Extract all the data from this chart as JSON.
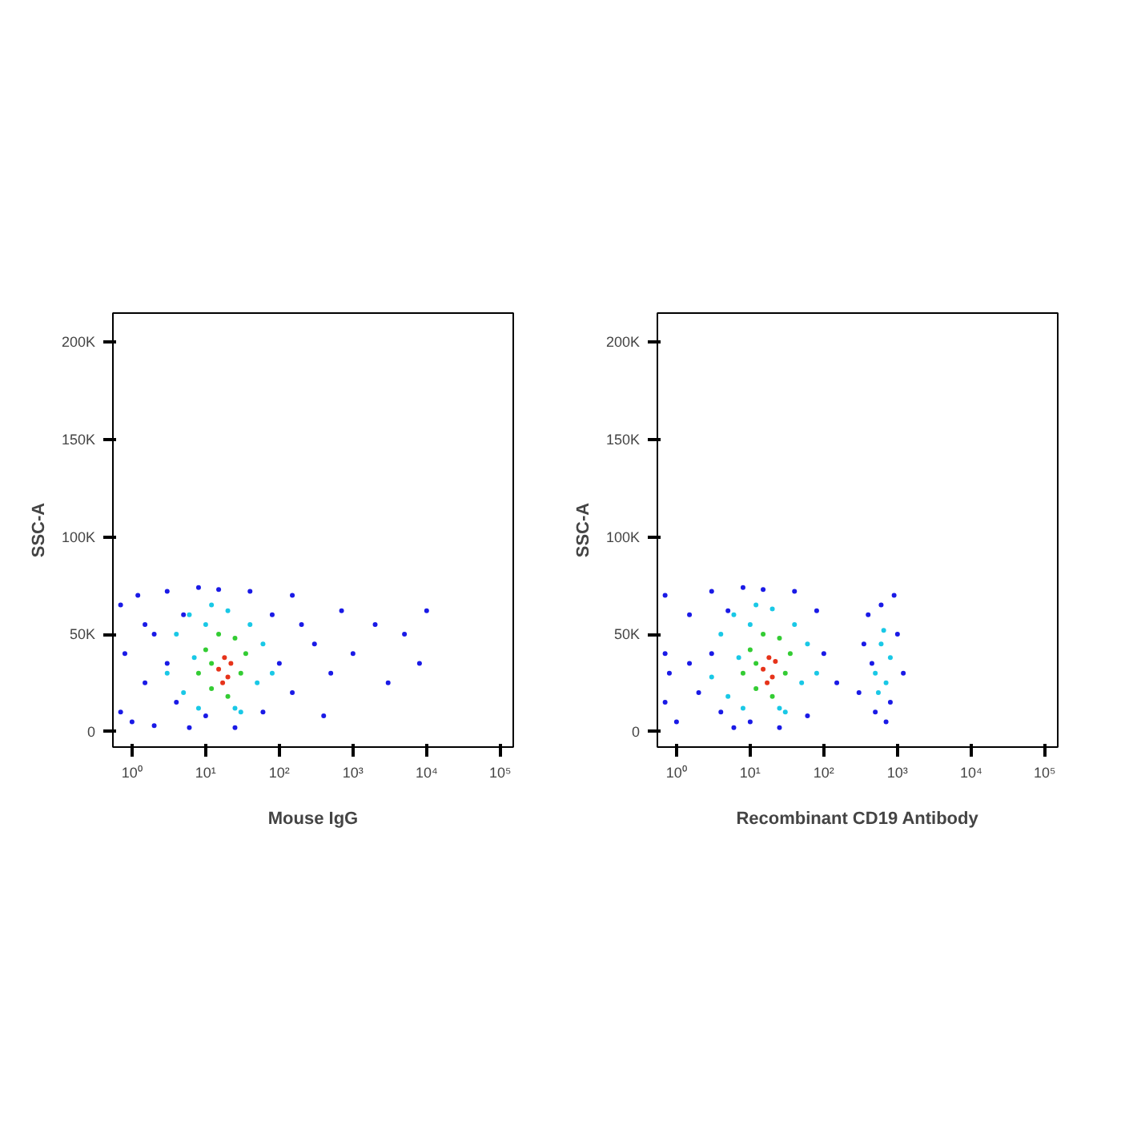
{
  "chart_data": [
    {
      "type": "scatter",
      "xlabel": "Mouse IgG",
      "ylabel": "SSC-A",
      "log": "x",
      "marker": "circle",
      "grid": false,
      "xlim": [
        0.55,
        150000
      ],
      "ylim": [
        -8000,
        215000
      ],
      "xticks": [
        {
          "value": 1,
          "label": "10⁰"
        },
        {
          "value": 10,
          "label": "10¹"
        },
        {
          "value": 100,
          "label": "10²"
        },
        {
          "value": 1000,
          "label": "10³"
        },
        {
          "value": 10000,
          "label": "10⁴"
        },
        {
          "value": 100000,
          "label": "10⁵"
        }
      ],
      "yticks": [
        0,
        {
          "value": 50000,
          "label": "50K"
        },
        {
          "value": 100000,
          "label": "100K"
        },
        {
          "value": 150000,
          "label": "150K"
        },
        {
          "value": 200000,
          "label": "200K"
        }
      ],
      "series": [
        {
          "color": "#1a1ae6",
          "x": [
            0.7,
            0.8,
            0.7,
            1,
            1.2,
            1.5,
            2,
            2,
            3,
            4,
            5,
            6,
            8,
            10,
            15,
            25,
            40,
            60,
            80,
            100,
            150,
            200,
            300,
            500,
            700,
            1000,
            2000,
            3000,
            5000,
            8000,
            10000,
            3,
            1.5,
            150,
            400
          ],
          "values": [
            10000,
            40000,
            65000,
            5000,
            70000,
            25000,
            50000,
            3000,
            72000,
            15000,
            60000,
            2000,
            74000,
            8000,
            73000,
            2000,
            72000,
            10000,
            60000,
            35000,
            20000,
            55000,
            45000,
            30000,
            62000,
            40000,
            55000,
            25000,
            50000,
            35000,
            62000,
            35000,
            55000,
            70000,
            8000
          ]
        },
        {
          "color": "#19c8e6",
          "x": [
            3,
            4,
            5,
            6,
            8,
            10,
            12,
            20,
            30,
            40,
            50,
            60,
            7,
            25,
            80
          ],
          "values": [
            30000,
            50000,
            20000,
            60000,
            12000,
            55000,
            65000,
            62000,
            10000,
            55000,
            25000,
            45000,
            38000,
            12000,
            30000
          ]
        },
        {
          "color": "#33cc33",
          "x": [
            8,
            10,
            12,
            15,
            20,
            25,
            30,
            35,
            12
          ],
          "values": [
            30000,
            42000,
            22000,
            50000,
            18000,
            48000,
            30000,
            40000,
            35000
          ]
        },
        {
          "color": "#e6331a",
          "x": [
            15,
            18,
            20,
            22,
            17
          ],
          "values": [
            32000,
            38000,
            28000,
            35000,
            25000
          ]
        }
      ]
    },
    {
      "type": "scatter",
      "xlabel": "Recombinant CD19 Antibody",
      "ylabel": "SSC-A",
      "log": "x",
      "marker": "circle",
      "grid": false,
      "xlim": [
        0.55,
        150000
      ],
      "ylim": [
        -8000,
        215000
      ],
      "xticks": [
        {
          "value": 1,
          "label": "10⁰"
        },
        {
          "value": 10,
          "label": "10¹"
        },
        {
          "value": 100,
          "label": "10²"
        },
        {
          "value": 1000,
          "label": "10³"
        },
        {
          "value": 10000,
          "label": "10⁴"
        },
        {
          "value": 100000,
          "label": "10⁵"
        }
      ],
      "yticks": [
        0,
        {
          "value": 50000,
          "label": "50K"
        },
        {
          "value": 100000,
          "label": "100K"
        },
        {
          "value": 150000,
          "label": "150K"
        },
        {
          "value": 200000,
          "label": "200K"
        }
      ],
      "series": [
        {
          "color": "#1a1ae6",
          "x": [
            0.7,
            0.7,
            0.7,
            0.8,
            1,
            1.5,
            2,
            3,
            4,
            5,
            6,
            8,
            10,
            15,
            25,
            40,
            60,
            80,
            100,
            150,
            3,
            1.5,
            300,
            350,
            400,
            500,
            600,
            800,
            1000,
            1200,
            900,
            450,
            700
          ],
          "values": [
            15000,
            40000,
            70000,
            30000,
            5000,
            60000,
            20000,
            72000,
            10000,
            62000,
            2000,
            74000,
            5000,
            73000,
            2000,
            72000,
            8000,
            62000,
            40000,
            25000,
            40000,
            35000,
            20000,
            45000,
            60000,
            10000,
            65000,
            15000,
            50000,
            30000,
            70000,
            35000,
            5000
          ]
        },
        {
          "color": "#19c8e6",
          "x": [
            3,
            4,
            5,
            6,
            8,
            10,
            12,
            20,
            30,
            40,
            50,
            60,
            7,
            25,
            80,
            500,
            600,
            700,
            800,
            650,
            550
          ],
          "values": [
            28000,
            50000,
            18000,
            60000,
            12000,
            55000,
            65000,
            63000,
            10000,
            55000,
            25000,
            45000,
            38000,
            12000,
            30000,
            30000,
            45000,
            25000,
            38000,
            52000,
            20000
          ]
        },
        {
          "color": "#33cc33",
          "x": [
            8,
            10,
            12,
            15,
            20,
            25,
            30,
            35,
            12
          ],
          "values": [
            30000,
            42000,
            22000,
            50000,
            18000,
            48000,
            30000,
            40000,
            35000
          ]
        },
        {
          "color": "#e6331a",
          "x": [
            15,
            18,
            20,
            22,
            17
          ],
          "values": [
            32000,
            38000,
            28000,
            36000,
            25000
          ]
        }
      ]
    }
  ]
}
